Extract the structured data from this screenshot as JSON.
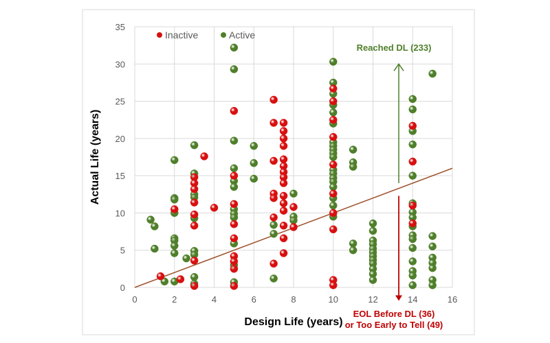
{
  "chart_data": {
    "type": "scatter",
    "xlabel": "Design Life (years)",
    "ylabel": "Actual Life (years)",
    "xlim": [
      0,
      16
    ],
    "ylim": [
      0,
      35
    ],
    "xticks": [
      0,
      2,
      4,
      6,
      8,
      10,
      12,
      14,
      16
    ],
    "yticks": [
      0,
      5,
      10,
      15,
      20,
      25,
      30,
      35
    ],
    "grid": true,
    "legend": "top-left",
    "series": [
      {
        "name": "Inactive",
        "color": "#d81010",
        "points": [
          [
            1.3,
            1.5
          ],
          [
            2,
            10.5
          ],
          [
            2.3,
            1.1
          ],
          [
            3,
            14.8
          ],
          [
            3,
            14
          ],
          [
            3,
            13.2
          ],
          [
            3,
            11.4
          ],
          [
            3,
            9.8
          ],
          [
            3,
            8.3
          ],
          [
            3,
            3.6
          ],
          [
            3,
            0.2
          ],
          [
            3.5,
            17.6
          ],
          [
            4,
            10.7
          ],
          [
            5,
            23.7
          ],
          [
            5,
            15
          ],
          [
            5,
            11.2
          ],
          [
            5,
            8.5
          ],
          [
            5,
            6.6
          ],
          [
            5,
            4.2
          ],
          [
            5,
            3.5
          ],
          [
            5,
            2.5
          ],
          [
            5,
            0.2
          ],
          [
            7,
            25.2
          ],
          [
            7,
            22.1
          ],
          [
            7,
            17
          ],
          [
            7,
            12.6
          ],
          [
            7,
            12
          ],
          [
            7,
            9.4
          ],
          [
            7,
            3.2
          ],
          [
            7.5,
            22.1
          ],
          [
            7.5,
            21
          ],
          [
            7.5,
            20
          ],
          [
            7.5,
            19
          ],
          [
            7.5,
            17.2
          ],
          [
            7.5,
            16.3
          ],
          [
            7.5,
            15.5
          ],
          [
            7.5,
            14.8
          ],
          [
            7.5,
            14
          ],
          [
            7.5,
            12.3
          ],
          [
            7.5,
            11.3
          ],
          [
            7.5,
            10.3
          ],
          [
            7.5,
            8.3
          ],
          [
            7.5,
            6.6
          ],
          [
            7.5,
            4.6
          ],
          [
            8,
            10.8
          ],
          [
            8,
            8.1
          ],
          [
            10,
            26.7
          ],
          [
            10,
            25
          ],
          [
            10,
            22.5
          ],
          [
            10,
            20.2
          ],
          [
            10,
            16.5
          ],
          [
            10,
            12.6
          ],
          [
            10,
            10
          ],
          [
            10,
            7.8
          ],
          [
            10,
            1
          ],
          [
            10,
            0.3
          ],
          [
            14,
            21.7
          ],
          [
            14,
            16.9
          ],
          [
            14,
            11
          ],
          [
            14,
            8.6
          ]
        ]
      },
      {
        "name": "Active",
        "color": "#4f7f2a",
        "points": [
          [
            0.8,
            9.1
          ],
          [
            1,
            8.2
          ],
          [
            1,
            5.2
          ],
          [
            1.5,
            0.8
          ],
          [
            2,
            17.1
          ],
          [
            2,
            12
          ],
          [
            2,
            11.8
          ],
          [
            2,
            10
          ],
          [
            2,
            6.6
          ],
          [
            2,
            6.3
          ],
          [
            2,
            5.6
          ],
          [
            2,
            4.6
          ],
          [
            2,
            0.8
          ],
          [
            2.6,
            3.9
          ],
          [
            3,
            19.1
          ],
          [
            3,
            15.3
          ],
          [
            3,
            12.5
          ],
          [
            3,
            12.1
          ],
          [
            3,
            9.3
          ],
          [
            3,
            4.9
          ],
          [
            3,
            4.4
          ],
          [
            3,
            1.4
          ],
          [
            3,
            0.5
          ],
          [
            5,
            32.2
          ],
          [
            5,
            29.3
          ],
          [
            5,
            19.7
          ],
          [
            5,
            16
          ],
          [
            5,
            14.3
          ],
          [
            5,
            13.5
          ],
          [
            5,
            10.5
          ],
          [
            5,
            9.9
          ],
          [
            5,
            9.4
          ],
          [
            5,
            5.9
          ],
          [
            5,
            3
          ],
          [
            5,
            0.7
          ],
          [
            6,
            19
          ],
          [
            6,
            16.7
          ],
          [
            6,
            14.6
          ],
          [
            7,
            8.4
          ],
          [
            7,
            7.2
          ],
          [
            7,
            1.2
          ],
          [
            8,
            12.6
          ],
          [
            8,
            9.5
          ],
          [
            8,
            9
          ],
          [
            10,
            30.3
          ],
          [
            10,
            27.5
          ],
          [
            10,
            26
          ],
          [
            10,
            24.5
          ],
          [
            10,
            23.5
          ],
          [
            10,
            22
          ],
          [
            10,
            19.5
          ],
          [
            10,
            19
          ],
          [
            10,
            18.5
          ],
          [
            10,
            18
          ],
          [
            10,
            17.5
          ],
          [
            10,
            15.8
          ],
          [
            10,
            15.3
          ],
          [
            10,
            14.7
          ],
          [
            10,
            14.2
          ],
          [
            10,
            13.5
          ],
          [
            10,
            12
          ],
          [
            10,
            11
          ],
          [
            10,
            9.5
          ],
          [
            11,
            18.5
          ],
          [
            11,
            16.8
          ],
          [
            11,
            16.2
          ],
          [
            11,
            5.9
          ],
          [
            11,
            5
          ],
          [
            12,
            8.6
          ],
          [
            12,
            7.6
          ],
          [
            12,
            6.3
          ],
          [
            12,
            5.8
          ],
          [
            12,
            5.2
          ],
          [
            12,
            4.7
          ],
          [
            12,
            4.2
          ],
          [
            12,
            3.7
          ],
          [
            12,
            3.2
          ],
          [
            12,
            2.5
          ],
          [
            12,
            1.8
          ],
          [
            12,
            1
          ],
          [
            14,
            25.3
          ],
          [
            14,
            23.9
          ],
          [
            14,
            21
          ],
          [
            14,
            19.2
          ],
          [
            14,
            15
          ],
          [
            14,
            11.3
          ],
          [
            14,
            10.1
          ],
          [
            14,
            9.4
          ],
          [
            14,
            8.2
          ],
          [
            14,
            7
          ],
          [
            14,
            6.5
          ],
          [
            14,
            5.3
          ],
          [
            14,
            3.5
          ],
          [
            14,
            2.2
          ],
          [
            14,
            1.6
          ],
          [
            14,
            0.3
          ],
          [
            15,
            28.7
          ],
          [
            15,
            6.9
          ],
          [
            15,
            5.5
          ],
          [
            15,
            4
          ],
          [
            15,
            3.3
          ],
          [
            15,
            2.6
          ],
          [
            15,
            1
          ],
          [
            15,
            0.3
          ]
        ]
      }
    ],
    "trendline": {
      "from": [
        0,
        0
      ],
      "to": [
        16,
        16
      ],
      "color": "#a0522d"
    },
    "annotations": {
      "reached": {
        "text": "Reached DL (233)",
        "color": "#4f7f2a",
        "arrow_x": 13.3,
        "arrow_from": 14,
        "arrow_to": 30
      },
      "eol": {
        "line1": "EOL Before DL (36)",
        "line2": "or  Too Early to Tell (49)",
        "color": "#c00000",
        "arrow_x": 13.3,
        "arrow_from": 12.3,
        "arrow_to": -1.8
      }
    }
  }
}
